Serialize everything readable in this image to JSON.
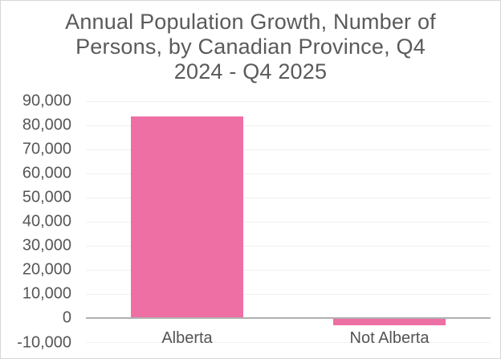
{
  "chart_data": {
    "type": "bar",
    "title": "Annual Population Growth, Number of Persons, by Canadian Province, Q4 2024 - Q4 2025",
    "title_lines": [
      "Annual Population Growth, Number of",
      "Persons, by Canadian Province, Q4",
      "2024 - Q4 2025"
    ],
    "categories": [
      "Alberta",
      "Not Alberta"
    ],
    "values": [
      83800,
      -2700
    ],
    "xlabel": "",
    "ylabel": "",
    "ylim": [
      -10000,
      90000
    ],
    "yticks": [
      {
        "value": 90000,
        "label": "90,000"
      },
      {
        "value": 80000,
        "label": "80,000"
      },
      {
        "value": 70000,
        "label": "70,000"
      },
      {
        "value": 60000,
        "label": "60,000"
      },
      {
        "value": 50000,
        "label": "50,000"
      },
      {
        "value": 40000,
        "label": "40,000"
      },
      {
        "value": 30000,
        "label": "30,000"
      },
      {
        "value": 20000,
        "label": "20,000"
      },
      {
        "value": 10000,
        "label": "10,000"
      },
      {
        "value": 0,
        "label": "0"
      },
      {
        "value": -10000,
        "label": "-10,000"
      }
    ],
    "grid": "horizontal",
    "legend": "none",
    "colors": {
      "bar": "#ee6fa3",
      "text": "#5a5a5a",
      "axis_line": "#b0b0b0",
      "gridline": "#f1f1f1",
      "background": "#ffffff",
      "border": "#d7d7d7"
    }
  }
}
